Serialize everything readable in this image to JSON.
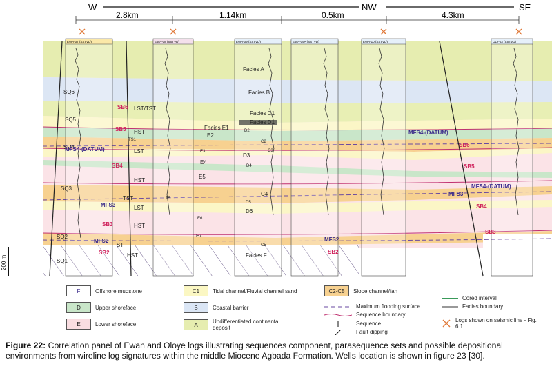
{
  "directions": {
    "w": "W",
    "nw": "NW",
    "se": "SE"
  },
  "distances": [
    "2.8km",
    "1.14km",
    "0.5km",
    "4.3km"
  ],
  "wells": [
    "EWA-07 (SSTVD)",
    "EWA-08 (SSTVD)",
    "EWA-09 (SSTVD)",
    "EWA-09A (SSTVD)",
    "EWA-10 (SSTVD)",
    "OLY-03 (SSTVD)"
  ],
  "facies_labels": [
    "Facies A",
    "Facies B",
    "Facies C1",
    "Facies D1",
    "Facies E1",
    "E2",
    "D2",
    "C2",
    "E3",
    "C3",
    "D3",
    "D4",
    "E4",
    "E5",
    "C4",
    "D5",
    "D6",
    "T5",
    "E6",
    "E7",
    "C5",
    "Facies F"
  ],
  "sequence_labels": [
    "SQ6",
    "SQ5",
    "SQ4",
    "SQ3",
    "SQ2",
    "SQ1"
  ],
  "systems_tracts": [
    "LST/TST",
    "HST",
    "TS1",
    "LST",
    "HST",
    "TST",
    "LST",
    "HST",
    "TST",
    "HST"
  ],
  "boundaries": [
    "SB6",
    "SB5",
    "SB4",
    "SB3",
    "SB2",
    "SB6",
    "SB5",
    "SB4",
    "SB3",
    "SB2"
  ],
  "flooding_surfaces": [
    "MFS4-(DATUM)",
    "MFS3",
    "MFS2",
    "MFS4-(DATUM)",
    "MFS4-(DATUM)",
    "MFS3",
    "MFS2"
  ],
  "scale_label": "200 m",
  "legend": {
    "items": [
      {
        "code": "F",
        "label": "Offshore mudstone",
        "color": "#ffffff"
      },
      {
        "code": "D",
        "label": "Upper shoreface",
        "color": "#c9e6c9"
      },
      {
        "code": "E",
        "label": "Lower shoreface",
        "color": "#f9dde1"
      },
      {
        "code": "C1",
        "label": "Tidal channel/Fluvial channel sand",
        "color": "#fbf7c3"
      },
      {
        "code": "B",
        "label": "Coastal barrier",
        "color": "#dbe6f5"
      },
      {
        "code": "A",
        "label": "Undifferentiated continental deposit",
        "color": "#e6edb0"
      },
      {
        "code": "C2-C5",
        "label": "Slope channel/fan",
        "color": "#f7d190"
      }
    ],
    "lines": [
      "Maximum flooding surface",
      "Sequence boundary",
      "Sequence",
      "Fault dipping",
      "Cored interval",
      "Facies boundary",
      "Logs shown on seismic line - Fig. 6.1"
    ]
  },
  "caption": {
    "figure": "Figure 22:",
    "text": "Correlation panel of Ewan and Oloye logs illustrating sequences component, parasequence sets and possible depositional environments from wireline log signatures within the middle Miocene Agbada Formation. Wells location is shown in figure 23 [30]."
  }
}
